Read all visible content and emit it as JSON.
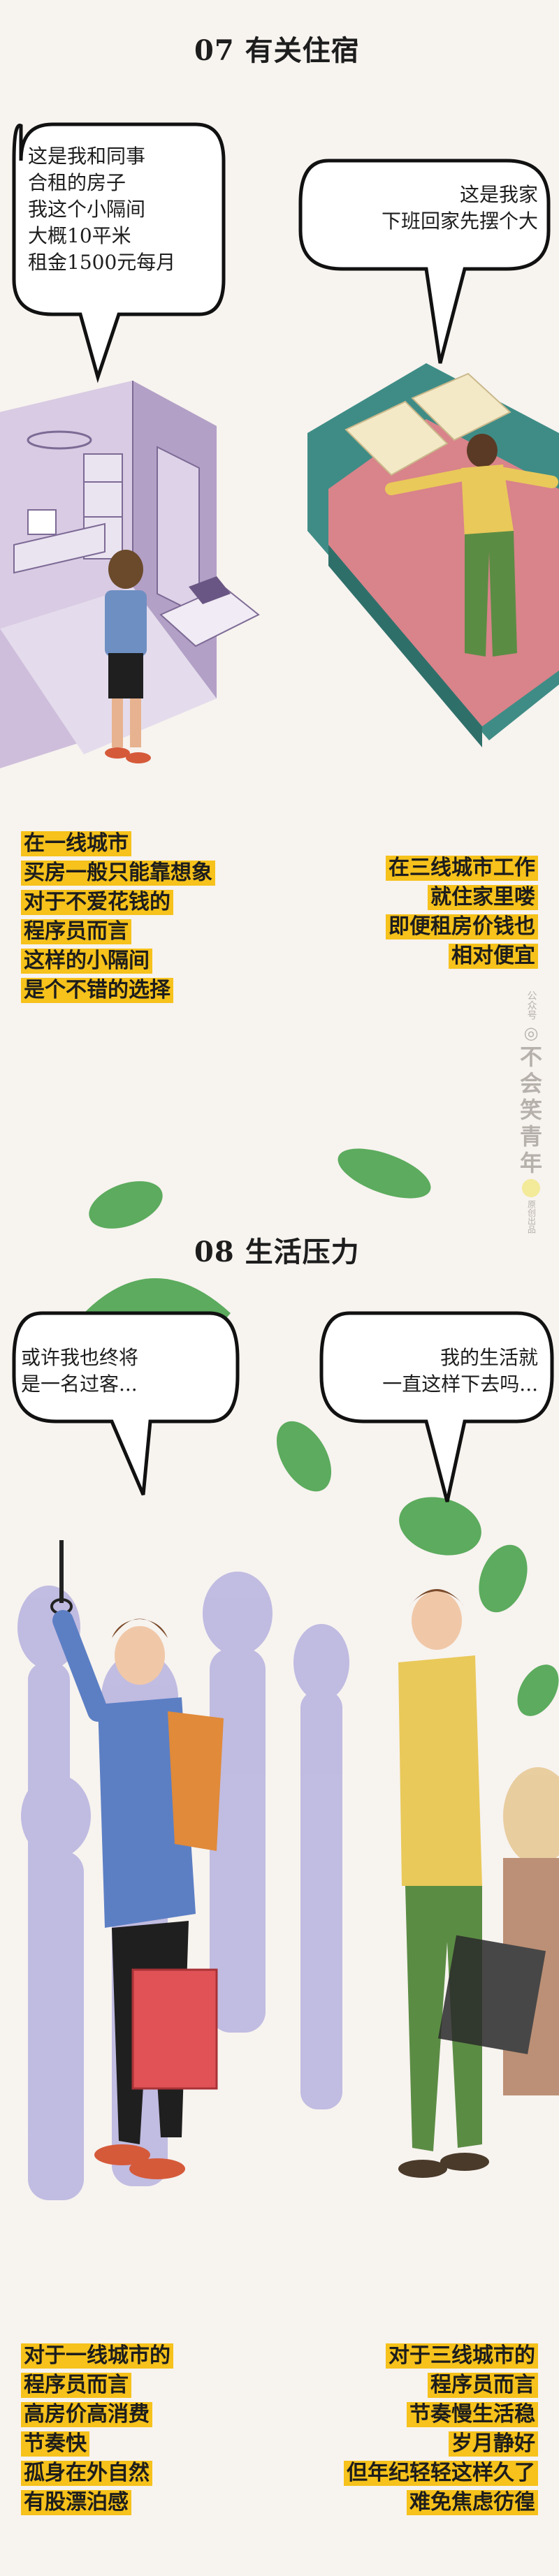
{
  "section1": {
    "title": "07 有关住宿",
    "bubble_left": "这是我和同事\n合租的房子\n我这个小隔间\n大概10平米\n租金1500元每月",
    "bubble_right": "这是我家\n下班回家先摆个大",
    "caption_left": [
      "在一线城市",
      "买房一般只能靠想象",
      "对于不爱花钱的",
      "程序员而言",
      "这样的小隔间",
      "是个不错的选择"
    ],
    "caption_right": [
      "在三线城市工作",
      "就住家里喽",
      "即便租房价钱也",
      "相对便宜"
    ]
  },
  "watermark": {
    "top": "公众号",
    "chars": [
      "不",
      "会",
      "笑",
      "青",
      "年"
    ],
    "bottom": "原创出品"
  },
  "section2": {
    "title": "08 生活压力",
    "bubble_left": "或许我也终将\n是一名过客...",
    "bubble_right": "我的生活就\n一直这样下去吗...",
    "caption_left": [
      "对于一线城市的",
      "程序员而言",
      "高房价高消费",
      "节奏快",
      "孤身在外自然",
      "有股漂泊感"
    ],
    "caption_right": [
      "对于三线城市的",
      "程序员而言",
      "节奏慢生活稳",
      "岁月静好",
      "但年纪轻轻这样久了",
      "难免焦虑彷徨"
    ]
  },
  "colors": {
    "background": "#f7f3ef",
    "highlight": "#f6c21b",
    "room": "#b9a6c9",
    "bed_sheet": "#d9838a",
    "bed_frame": "#3f8c86",
    "leaf": "#5cab5e",
    "shirt_blue": "#5c7fc4",
    "shirt_plaid": "#e9c95a",
    "pants_green": "#5b8c44",
    "bag_red": "#e05256",
    "crowd": "#aaa4dc"
  }
}
